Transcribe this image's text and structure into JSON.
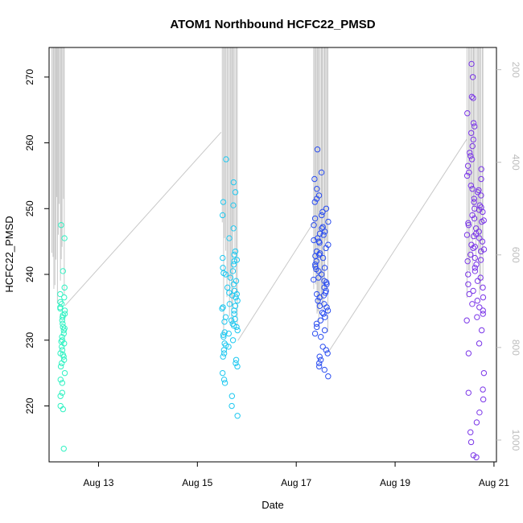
{
  "chart_data": {
    "type": "scatter",
    "title": "ATOM1 Northbound HCFC22_PMSD",
    "xlabel": "Date",
    "ylabel": "HCFC22_PMSD",
    "x_unit": "days in August",
    "xlim": [
      12.0,
      21.05
    ],
    "ylim": [
      211.5,
      274.5
    ],
    "x_ticks": [
      {
        "value": 13,
        "label": "Aug 13"
      },
      {
        "value": 15,
        "label": "Aug 15"
      },
      {
        "value": 17,
        "label": "Aug 17"
      },
      {
        "value": 19,
        "label": "Aug 19"
      },
      {
        "value": 21,
        "label": "Aug 21"
      }
    ],
    "y_ticks": [
      220,
      230,
      240,
      250,
      260,
      270
    ],
    "secondary_y": {
      "color": "#bdbdbd",
      "lim": [
        1047,
        152
      ],
      "ticks": [
        200,
        400,
        600,
        800,
        1000
      ],
      "description": "grey line series on right axis (inverted)"
    },
    "clusters": [
      {
        "name": "Aug 12",
        "color": "#2ef2c2",
        "x_range": [
          12.22,
          12.32
        ],
        "y_values": [
          247.5,
          245.5,
          240.5,
          238.0,
          237.0,
          236.5,
          235.5,
          235.0,
          234.8,
          234.5,
          234.0,
          233.5,
          233.0,
          232.5,
          232.0,
          231.5,
          231.0,
          230.5,
          230.0,
          229.5,
          229.0,
          228.5,
          228.0,
          227.5,
          227.0,
          226.5,
          226.0,
          225.0,
          224.0,
          223.5,
          222.0,
          221.5,
          220.0,
          219.5,
          213.5,
          235.8,
          233.8,
          231.8,
          229.8,
          227.8
        ]
      },
      {
        "name": "Aug 15",
        "color": "#1ec8f0",
        "x_range": [
          15.5,
          15.82
        ],
        "y_values": [
          257.5,
          254.0,
          252.5,
          251.0,
          250.5,
          249.0,
          247.0,
          245.5,
          243.5,
          243.0,
          242.5,
          242.0,
          241.5,
          241.0,
          240.5,
          240.0,
          239.5,
          239.0,
          238.5,
          238.0,
          237.5,
          237.0,
          236.5,
          236.0,
          235.5,
          235.0,
          234.5,
          234.0,
          233.5,
          233.0,
          232.5,
          232.0,
          231.5,
          231.0,
          230.5,
          230.0,
          229.5,
          229.0,
          228.5,
          228.0,
          227.5,
          227.0,
          226.5,
          226.0,
          225.0,
          224.0,
          223.5,
          221.5,
          220.0,
          218.5,
          237.2,
          235.2,
          233.2,
          232.8,
          231.2,
          229.2,
          240.2,
          242.2,
          236.8,
          234.8,
          232.2,
          230.8
        ]
      },
      {
        "name": "Aug 17",
        "color": "#2a4df0",
        "x_range": [
          17.35,
          17.65
        ],
        "y_values": [
          259.0,
          255.5,
          254.5,
          253.0,
          252.0,
          251.5,
          251.0,
          250.0,
          249.5,
          249.0,
          248.5,
          248.0,
          247.5,
          247.0,
          246.5,
          246.0,
          245.5,
          245.0,
          244.5,
          244.0,
          243.5,
          243.0,
          242.5,
          242.0,
          241.5,
          241.0,
          240.5,
          240.0,
          239.5,
          239.0,
          238.5,
          238.0,
          237.5,
          237.0,
          236.5,
          236.0,
          235.5,
          235.0,
          234.5,
          234.0,
          233.5,
          233.0,
          232.5,
          232.0,
          231.5,
          231.0,
          230.5,
          229.0,
          228.5,
          228.0,
          227.5,
          227.0,
          226.5,
          226.0,
          225.5,
          224.5,
          245.2,
          243.2,
          241.2,
          239.2,
          237.2,
          244.8,
          242.8,
          240.8,
          238.8,
          236.8,
          246.2,
          247.2,
          234.2,
          235.2
        ]
      },
      {
        "name": "Aug 20",
        "color": "#7a35e8",
        "x_range": [
          20.45,
          20.8
        ],
        "y_values": [
          272.0,
          270.0,
          267.0,
          266.8,
          264.5,
          263.0,
          262.5,
          261.5,
          260.5,
          259.5,
          258.5,
          258.0,
          257.5,
          256.5,
          256.0,
          255.5,
          255.0,
          254.5,
          253.5,
          253.0,
          252.5,
          252.0,
          251.5,
          251.0,
          250.5,
          250.0,
          249.5,
          249.0,
          248.5,
          248.0,
          247.5,
          247.0,
          246.5,
          246.0,
          245.5,
          245.0,
          244.5,
          244.0,
          243.5,
          243.0,
          242.5,
          242.0,
          241.5,
          241.0,
          240.5,
          240.0,
          239.5,
          239.0,
          238.5,
          238.0,
          237.5,
          237.0,
          236.5,
          236.0,
          235.5,
          235.0,
          234.5,
          234.0,
          233.5,
          233.0,
          231.5,
          229.5,
          228.0,
          225.0,
          222.5,
          222.0,
          221.0,
          219.0,
          217.5,
          216.0,
          214.5,
          212.5,
          212.2,
          250.2,
          248.2,
          246.2,
          244.2,
          242.2,
          252.8,
          249.8,
          247.8,
          245.8,
          243.8
        ]
      }
    ],
    "line_series": {
      "name": "grey secondary trace",
      "color": "#c8c8c8",
      "segments": [
        {
          "x_range": [
            12.05,
            12.32
          ],
          "top": 152,
          "bottom": 710
        },
        {
          "x_range": [
            15.5,
            15.82
          ],
          "top": 152,
          "bottom": 785
        },
        {
          "x_range": [
            17.35,
            17.65
          ],
          "top": 152,
          "bottom": 810
        },
        {
          "x_range": [
            20.45,
            20.8
          ],
          "top": 152,
          "bottom": 710
        }
      ],
      "connectors": [
        {
          "from": [
            12.32,
            710
          ],
          "to": [
            15.48,
            335
          ]
        },
        {
          "from": [
            15.82,
            785
          ],
          "to": [
            17.35,
            530
          ]
        },
        {
          "from": [
            17.65,
            810
          ],
          "to": [
            20.45,
            350
          ]
        }
      ]
    }
  }
}
